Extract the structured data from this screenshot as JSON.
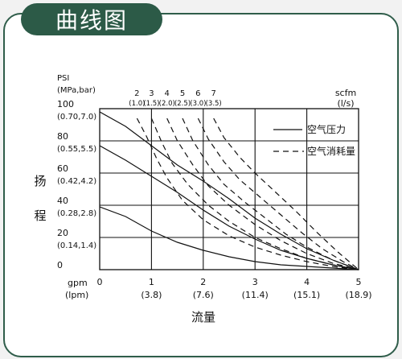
{
  "header": {
    "title": "曲线图"
  },
  "chart_data": {
    "type": "line",
    "y_label_chars": [
      "扬",
      "程"
    ],
    "x_label": "流量",
    "y_unit_line1": "PSI",
    "y_unit_line2": "(MPa,bar)",
    "x_unit_line1": "gpm",
    "x_unit_line2": "(lpm)",
    "scfm_label_line1": "scfm",
    "scfm_label_line2": "(l/s)",
    "xlim": [
      0,
      5
    ],
    "ylim": [
      0,
      100
    ],
    "x_ticks": [
      {
        "x": 0,
        "main": "0",
        "sub": ""
      },
      {
        "x": 1,
        "main": "1",
        "sub": "(3.8)"
      },
      {
        "x": 2,
        "main": "2",
        "sub": "(7.6)"
      },
      {
        "x": 3,
        "main": "3",
        "sub": "(11.4)"
      },
      {
        "x": 4,
        "main": "4",
        "sub": "(15.1)"
      },
      {
        "x": 5,
        "main": "5",
        "sub": "(18.9)"
      }
    ],
    "y_ticks": [
      {
        "y": 100,
        "main": "100",
        "sub": "(0.70,7.0)"
      },
      {
        "y": 80,
        "main": "80",
        "sub": "(0.55,5.5)"
      },
      {
        "y": 60,
        "main": "60",
        "sub": "(0.42,4.2)"
      },
      {
        "y": 40,
        "main": "40",
        "sub": "(0.28,2.8)"
      },
      {
        "y": 20,
        "main": "20",
        "sub": "(0.14,1.4)"
      },
      {
        "y": 0,
        "main": "0",
        "sub": ""
      }
    ],
    "air_flow_ticks": [
      {
        "x": 0.72,
        "main": "2",
        "sub": "(1.0)"
      },
      {
        "x": 1.0,
        "main": "3",
        "sub": "(1.5)"
      },
      {
        "x": 1.3,
        "main": "4",
        "sub": "(2.0)"
      },
      {
        "x": 1.6,
        "main": "5",
        "sub": "(2.5)"
      },
      {
        "x": 1.9,
        "main": "6",
        "sub": "(3.0)"
      },
      {
        "x": 2.2,
        "main": "7",
        "sub": "(3.5)"
      }
    ],
    "legend": {
      "position": "top-right",
      "solid": "空气压力",
      "dashed": "空气消耗量"
    },
    "grid": true,
    "pressure_curves": [
      {
        "style": "solid",
        "points": [
          [
            0,
            98
          ],
          [
            0.5,
            89
          ],
          [
            1,
            77
          ],
          [
            1.5,
            65
          ],
          [
            2,
            55
          ],
          [
            2.5,
            44
          ],
          [
            3,
            32
          ],
          [
            3.5,
            22
          ],
          [
            4,
            13
          ],
          [
            4.5,
            6
          ],
          [
            5,
            0
          ]
        ]
      },
      {
        "style": "solid",
        "points": [
          [
            0,
            77
          ],
          [
            0.5,
            68
          ],
          [
            1,
            58
          ],
          [
            1.5,
            48
          ],
          [
            2,
            37
          ],
          [
            2.5,
            27
          ],
          [
            3,
            19
          ],
          [
            3.5,
            12
          ],
          [
            4,
            7
          ],
          [
            4.5,
            3
          ],
          [
            5,
            0
          ]
        ]
      },
      {
        "style": "solid",
        "points": [
          [
            0,
            39
          ],
          [
            0.5,
            33
          ],
          [
            1,
            24
          ],
          [
            1.5,
            17
          ],
          [
            2,
            12
          ],
          [
            2.5,
            8
          ],
          [
            3,
            5
          ],
          [
            3.5,
            3
          ],
          [
            4,
            2
          ],
          [
            4.5,
            1
          ],
          [
            5,
            0
          ]
        ]
      }
    ],
    "consumption_curves": [
      {
        "style": "dashed",
        "points": [
          [
            0.72,
            94
          ],
          [
            0.9,
            83
          ],
          [
            1.1,
            69
          ],
          [
            1.3,
            57
          ],
          [
            1.6,
            43
          ],
          [
            2,
            31
          ],
          [
            2.5,
            21
          ],
          [
            3,
            14
          ],
          [
            3.5,
            9
          ],
          [
            4,
            5
          ],
          [
            4.5,
            2
          ],
          [
            5,
            0
          ]
        ]
      },
      {
        "style": "dashed",
        "points": [
          [
            1.0,
            94
          ],
          [
            1.2,
            79
          ],
          [
            1.4,
            66
          ],
          [
            1.7,
            53
          ],
          [
            2.1,
            40
          ],
          [
            2.5,
            30
          ],
          [
            3,
            20
          ],
          [
            3.5,
            13
          ],
          [
            4,
            7
          ],
          [
            4.5,
            3
          ],
          [
            5,
            0
          ]
        ]
      },
      {
        "style": "dashed",
        "points": [
          [
            1.3,
            94
          ],
          [
            1.5,
            80
          ],
          [
            1.8,
            65
          ],
          [
            2.1,
            52
          ],
          [
            2.5,
            40
          ],
          [
            3,
            28
          ],
          [
            3.5,
            18
          ],
          [
            4,
            10
          ],
          [
            4.5,
            4
          ],
          [
            5,
            0
          ]
        ]
      },
      {
        "style": "dashed",
        "points": [
          [
            1.6,
            94
          ],
          [
            1.8,
            80
          ],
          [
            2.1,
            65
          ],
          [
            2.4,
            53
          ],
          [
            2.8,
            42
          ],
          [
            3.2,
            32
          ],
          [
            3.6,
            22
          ],
          [
            4,
            14
          ],
          [
            4.5,
            6
          ],
          [
            5,
            0
          ]
        ]
      },
      {
        "style": "dashed",
        "points": [
          [
            1.9,
            94
          ],
          [
            2.1,
            81
          ],
          [
            2.4,
            67
          ],
          [
            2.7,
            56
          ],
          [
            3.1,
            45
          ],
          [
            3.5,
            34
          ],
          [
            3.9,
            23
          ],
          [
            4.3,
            13
          ],
          [
            4.7,
            5
          ],
          [
            5,
            0
          ]
        ]
      },
      {
        "style": "dashed",
        "points": [
          [
            2.2,
            94
          ],
          [
            2.4,
            82
          ],
          [
            2.7,
            70
          ],
          [
            3.0,
            60
          ],
          [
            3.4,
            48
          ],
          [
            3.8,
            36
          ],
          [
            4.2,
            23
          ],
          [
            4.6,
            11
          ],
          [
            5,
            0
          ]
        ]
      }
    ]
  }
}
